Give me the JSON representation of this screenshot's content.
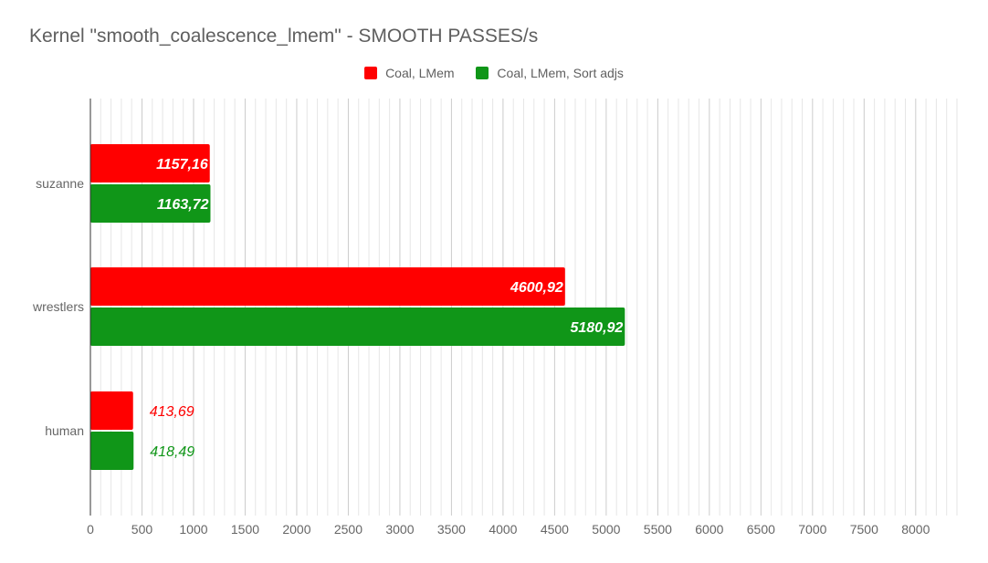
{
  "chart_data": {
    "type": "bar",
    "orientation": "horizontal",
    "title": "Kernel \"smooth_coalescence_lmem\" - SMOOTH PASSES/s",
    "xlabel": "",
    "ylabel": "",
    "xlim": [
      0,
      8400
    ],
    "x_ticks": [
      "0",
      "500",
      "1000",
      "1500",
      "2000",
      "2500",
      "3000",
      "3500",
      "4000",
      "4500",
      "5000",
      "5500",
      "6000",
      "6500",
      "7000",
      "7500",
      "8000"
    ],
    "minor_grid_step": 100,
    "grid": true,
    "legend_position": "top",
    "categories": [
      "suzanne",
      "wrestlers",
      "human"
    ],
    "series": [
      {
        "name": "Coal, LMem",
        "color": "#ff0000",
        "values": [
          1157.16,
          4600.92,
          413.69
        ],
        "labels": [
          "1157,16",
          "4600,92",
          "413,69"
        ]
      },
      {
        "name": "Coal, LMem, Sort adjs",
        "color": "#109618",
        "values": [
          1163.72,
          5180.92,
          418.49
        ],
        "labels": [
          "1163,72",
          "5180,92",
          "418,49"
        ]
      }
    ]
  }
}
